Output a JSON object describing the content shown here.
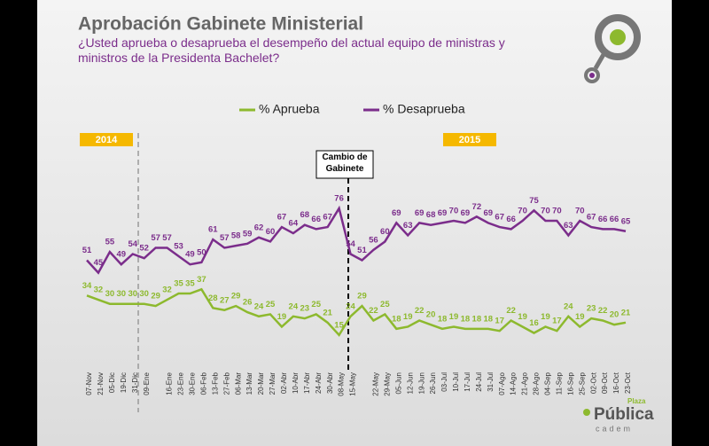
{
  "chart_data": {
    "type": "line",
    "title": "Aprobación Gabinete Ministerial",
    "subtitle": "¿Usted aprueba o desaprueba el desempeño del actual equipo de ministras y ministros de la Presidenta Bachelet?",
    "categories": [
      "07-Nov",
      "21-Nov",
      "05-Dic",
      "19-Dic",
      "31-Dic",
      "09-Ene",
      null,
      "16-Ene",
      "23-Ene",
      "30-Ene",
      "06-Feb",
      "13-Feb",
      "27-Feb",
      "06-Mar",
      "13-Mar",
      "20-Mar",
      "27-Mar",
      "02-Abr",
      "10-Abr",
      "17-Abr",
      "24-Abr",
      "30-Abr",
      "08-May",
      "15-May",
      null,
      "22-May",
      "29-May",
      "05-Jun",
      "12-Jun",
      "19-Jun",
      "26-Jun",
      "03-Jul",
      "10-Jul",
      "17-Jul",
      "24-Jul",
      "31-Jul",
      "07-Ago",
      "14-Ago",
      "21-Ago",
      "28-Ago",
      "04-Sep",
      "11-Sep",
      "16-Sep",
      "25-Sep",
      "02-Oct",
      "09-Oct",
      "16-Oct",
      "23-Oct"
    ],
    "series": [
      {
        "name": "% Aprueba",
        "color": "#8db92e",
        "values": [
          34,
          32,
          30,
          30,
          30,
          30,
          29,
          32,
          35,
          35,
          37,
          28,
          27,
          29,
          26,
          24,
          25,
          19,
          24,
          23,
          25,
          21,
          15,
          24,
          29,
          22,
          25,
          18,
          19,
          22,
          20,
          18,
          19,
          18,
          18,
          18,
          17,
          22,
          19,
          16,
          19,
          17,
          24,
          19,
          23,
          22,
          20,
          21
        ]
      },
      {
        "name": "% Desaprueba",
        "color": "#7b2d8b",
        "values": [
          51,
          45,
          55,
          49,
          54,
          52,
          57,
          57,
          53,
          49,
          50,
          61,
          57,
          58,
          59,
          62,
          60,
          67,
          64,
          68,
          66,
          67,
          76,
          54,
          51,
          56,
          60,
          69,
          63,
          69,
          68,
          69,
          70,
          69,
          72,
          69,
          67,
          66,
          70,
          75,
          70,
          70,
          63,
          70,
          67,
          66,
          66,
          65
        ]
      }
    ],
    "ylim": [
      0,
      80
    ],
    "annotations": {
      "year_start": "2014",
      "year_end": "2015",
      "event": "Cambio de Gabinete"
    },
    "logo": {
      "top": "Plaza",
      "main": "Pública",
      "bottom": "cadem"
    }
  }
}
